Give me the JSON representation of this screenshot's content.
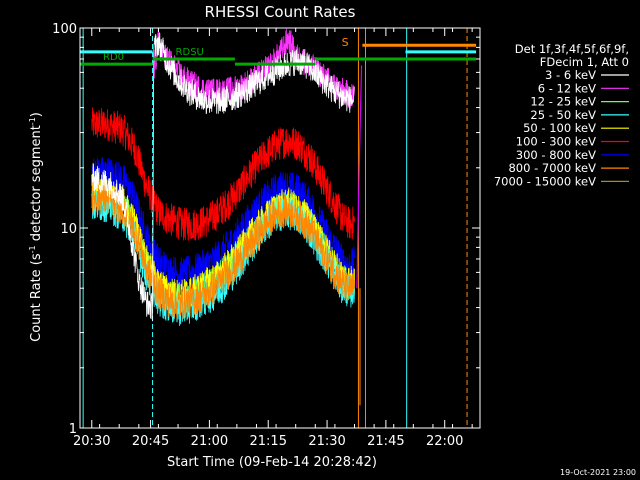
{
  "chart_data": {
    "type": "line",
    "title": "RHESSI Count Rates",
    "xlabel": "Start Time (09-Feb-14 20:28:42)",
    "ylabel_main": "Count Rate (s",
    "ylabel_sup1": "-1",
    "ylabel_mid": " detector segment",
    "ylabel_sup2": "-1",
    "ylabel_end": ")",
    "yscale": "log",
    "ylim": [
      1,
      100
    ],
    "xlim_minutes": [
      -3,
      99
    ],
    "x_ticks": [
      {
        "m": 0,
        "label": "20:30"
      },
      {
        "m": 15,
        "label": "20:45"
      },
      {
        "m": 30,
        "label": "21:00"
      },
      {
        "m": 45,
        "label": "21:15"
      },
      {
        "m": 60,
        "label": "21:30"
      },
      {
        "m": 75,
        "label": "21:45"
      },
      {
        "m": 90,
        "label": "22:00"
      }
    ],
    "y_ticks": [
      {
        "v": 1,
        "label": "1"
      },
      {
        "v": 10,
        "label": "10"
      },
      {
        "v": 100,
        "label": "100"
      }
    ],
    "legend_header": [
      "Det 1f,3f,4f,5f,6f,9f,",
      "FDecim 1, Att 0"
    ],
    "legend_location": "top-right",
    "series": [
      {
        "name": "3 - 6 keV",
        "color": "#ffffff",
        "points": [
          [
            0,
            18
          ],
          [
            5,
            16.5
          ],
          [
            8,
            14
          ],
          [
            10,
            9
          ],
          [
            12,
            5.5
          ],
          [
            14,
            4.2
          ],
          [
            15.5,
            4
          ],
          [
            15.8,
            78
          ],
          [
            17,
            85
          ],
          [
            19,
            70
          ],
          [
            22,
            55
          ],
          [
            25,
            48
          ],
          [
            28,
            44
          ],
          [
            30,
            43
          ],
          [
            33,
            43
          ],
          [
            36,
            45
          ],
          [
            39,
            48
          ],
          [
            42,
            53
          ],
          [
            45,
            58
          ],
          [
            48,
            63
          ],
          [
            50,
            66
          ],
          [
            52,
            68
          ],
          [
            54,
            67
          ],
          [
            56,
            62
          ],
          [
            58,
            57
          ],
          [
            60,
            52
          ],
          [
            62,
            48
          ],
          [
            64,
            45
          ],
          [
            66,
            44
          ],
          [
            67,
            43
          ]
        ]
      },
      {
        "name": "6 - 12 keV",
        "color": "#ff33ff",
        "points": [
          [
            15.8,
            60
          ],
          [
            17,
            85
          ],
          [
            19,
            72
          ],
          [
            22,
            60
          ],
          [
            25,
            53
          ],
          [
            28,
            49
          ],
          [
            30,
            48
          ],
          [
            33,
            48
          ],
          [
            36,
            49
          ],
          [
            39,
            52
          ],
          [
            42,
            57
          ],
          [
            45,
            63
          ],
          [
            47,
            70
          ],
          [
            49,
            80
          ],
          [
            50,
            88
          ],
          [
            51,
            82
          ],
          [
            52,
            72
          ],
          [
            54,
            69
          ],
          [
            56,
            64
          ],
          [
            58,
            60
          ],
          [
            60,
            55
          ],
          [
            62,
            51
          ],
          [
            64,
            48
          ],
          [
            66,
            46
          ],
          [
            67,
            46
          ]
        ]
      },
      {
        "name": "12 - 25 keV",
        "color": "#66ff66",
        "points": [
          [
            0,
            15
          ],
          [
            4,
            14.5
          ],
          [
            8,
            13
          ],
          [
            11,
            10
          ],
          [
            14,
            6.5
          ],
          [
            17,
            5
          ],
          [
            20,
            4.5
          ],
          [
            23,
            4.5
          ],
          [
            26,
            4.7
          ],
          [
            29,
            5
          ],
          [
            32,
            5.5
          ],
          [
            35,
            6.3
          ],
          [
            38,
            7.5
          ],
          [
            41,
            9
          ],
          [
            44,
            10.7
          ],
          [
            47,
            12.3
          ],
          [
            50,
            12.8
          ],
          [
            53,
            12
          ],
          [
            56,
            10.2
          ],
          [
            59,
            8
          ],
          [
            62,
            6.3
          ],
          [
            64,
            5.5
          ],
          [
            66,
            5.2
          ],
          [
            67,
            5.5
          ]
        ]
      },
      {
        "name": "25 - 50 keV",
        "color": "#33ffff",
        "points": [
          [
            0,
            13
          ],
          [
            4,
            13
          ],
          [
            8,
            11.5
          ],
          [
            11,
            9
          ],
          [
            14,
            5.8
          ],
          [
            17,
            4.4
          ],
          [
            20,
            4
          ],
          [
            23,
            3.9
          ],
          [
            26,
            4.1
          ],
          [
            29,
            4.4
          ],
          [
            32,
            4.8
          ],
          [
            35,
            5.6
          ],
          [
            38,
            6.7
          ],
          [
            41,
            8.2
          ],
          [
            44,
            10
          ],
          [
            47,
            11.5
          ],
          [
            50,
            12
          ],
          [
            53,
            11.2
          ],
          [
            56,
            9.4
          ],
          [
            59,
            7.4
          ],
          [
            62,
            5.8
          ],
          [
            64,
            5
          ],
          [
            66,
            4.8
          ],
          [
            67,
            5
          ]
        ]
      },
      {
        "name": "50 - 100 keV",
        "color": "#ffff00",
        "points": [
          [
            0,
            15.5
          ],
          [
            4,
            15
          ],
          [
            8,
            13.5
          ],
          [
            11,
            10.5
          ],
          [
            14,
            6.8
          ],
          [
            17,
            5.2
          ],
          [
            20,
            4.7
          ],
          [
            23,
            4.6
          ],
          [
            26,
            4.8
          ],
          [
            29,
            5.2
          ],
          [
            32,
            5.7
          ],
          [
            35,
            6.6
          ],
          [
            38,
            7.8
          ],
          [
            41,
            9.4
          ],
          [
            44,
            11
          ],
          [
            47,
            12.6
          ],
          [
            50,
            13.2
          ],
          [
            53,
            12.3
          ],
          [
            56,
            10.5
          ],
          [
            59,
            8.2
          ],
          [
            62,
            6.5
          ],
          [
            64,
            5.7
          ],
          [
            66,
            5.4
          ],
          [
            67,
            5.6
          ]
        ]
      },
      {
        "name": "100 - 300 keV",
        "color": "#ff0000",
        "points": [
          [
            0,
            33
          ],
          [
            4,
            33
          ],
          [
            8,
            31
          ],
          [
            11,
            25
          ],
          [
            14,
            16
          ],
          [
            17,
            12
          ],
          [
            20,
            11
          ],
          [
            23,
            10.4
          ],
          [
            26,
            10.4
          ],
          [
            29,
            10.8
          ],
          [
            32,
            11.8
          ],
          [
            35,
            13.5
          ],
          [
            38,
            16
          ],
          [
            41,
            19.5
          ],
          [
            44,
            23
          ],
          [
            47,
            26
          ],
          [
            50,
            27.5
          ],
          [
            53,
            26
          ],
          [
            56,
            22
          ],
          [
            59,
            17
          ],
          [
            62,
            13.2
          ],
          [
            64,
            11.2
          ],
          [
            66,
            10.4
          ],
          [
            67,
            10.8
          ]
        ]
      },
      {
        "name": "300 - 800 keV",
        "color": "#0000ff",
        "points": [
          [
            0,
            19
          ],
          [
            4,
            19
          ],
          [
            8,
            17.5
          ],
          [
            11,
            13.5
          ],
          [
            14,
            9
          ],
          [
            17,
            6.8
          ],
          [
            20,
            6.1
          ],
          [
            23,
            5.9
          ],
          [
            26,
            6.1
          ],
          [
            29,
            6.5
          ],
          [
            32,
            7.1
          ],
          [
            35,
            8.2
          ],
          [
            38,
            9.7
          ],
          [
            41,
            11.7
          ],
          [
            44,
            13.7
          ],
          [
            47,
            15.6
          ],
          [
            50,
            16.2
          ],
          [
            53,
            15.2
          ],
          [
            56,
            12.8
          ],
          [
            59,
            10
          ],
          [
            62,
            7.9
          ],
          [
            64,
            6.8
          ],
          [
            66,
            6.4
          ],
          [
            67,
            6.7
          ]
        ]
      },
      {
        "name": "800 - 7000 keV",
        "color": "#ff8800",
        "points": [
          [
            0,
            14.5
          ],
          [
            4,
            14
          ],
          [
            8,
            12.5
          ],
          [
            11,
            9.8
          ],
          [
            14,
            6.3
          ],
          [
            17,
            4.8
          ],
          [
            20,
            4.3
          ],
          [
            23,
            4.2
          ],
          [
            26,
            4.4
          ],
          [
            29,
            4.7
          ],
          [
            32,
            5.2
          ],
          [
            35,
            6
          ],
          [
            38,
            7.1
          ],
          [
            41,
            8.6
          ],
          [
            44,
            10.2
          ],
          [
            47,
            11.8
          ],
          [
            50,
            12.3
          ],
          [
            53,
            11.4
          ],
          [
            56,
            9.6
          ],
          [
            59,
            7.6
          ],
          [
            62,
            6
          ],
          [
            64,
            5.2
          ],
          [
            66,
            4.9
          ],
          [
            67,
            5.1
          ]
        ]
      },
      {
        "name": "7000 - 15000 keV",
        "color": "#aa8822",
        "points": []
      }
    ],
    "attenuator_states": [
      {
        "label": "RD0",
        "y": 66,
        "start": -3,
        "end": 15.5,
        "color": "#00aa00"
      },
      {
        "label": "RDSU",
        "y": 70,
        "start": 15.5,
        "end": 30,
        "color": "#00aa00"
      }
    ],
    "state_bars": [
      {
        "y": 76,
        "start": -3,
        "end": 15.5,
        "color": "#33ffff"
      },
      {
        "y": 70,
        "start": 30,
        "end": 36.5,
        "color": "#00aa00"
      },
      {
        "y": 66,
        "start": 36.5,
        "end": 57,
        "color": "#00aa00"
      },
      {
        "y": 70,
        "start": 57,
        "end": 98,
        "color": "#00aa00"
      },
      {
        "y": 82,
        "start": 69,
        "end": 98,
        "color": "#ff8800"
      },
      {
        "y": 76,
        "start": 80,
        "end": 98,
        "color": "#33ffff"
      }
    ],
    "event_labels": [
      {
        "label": "S",
        "m": 67.3,
        "y": 82,
        "color": "#ff8800"
      }
    ],
    "vertical_lines": [
      {
        "m": -2.2,
        "color": "#33ffff",
        "dashed": false
      },
      {
        "m": 15.5,
        "color": "#33ffff",
        "dashed": true
      },
      {
        "m": 68,
        "color": "#ff8800",
        "dashed": false
      },
      {
        "m": 69.8,
        "color": "#ff8800",
        "dashed": false
      },
      {
        "m": 80.3,
        "color": "#33ffff",
        "dashed": false
      },
      {
        "m": 95.7,
        "color": "#ff8800",
        "dashed": true
      }
    ],
    "footer_date": "19-Oct-2021 23:00"
  }
}
